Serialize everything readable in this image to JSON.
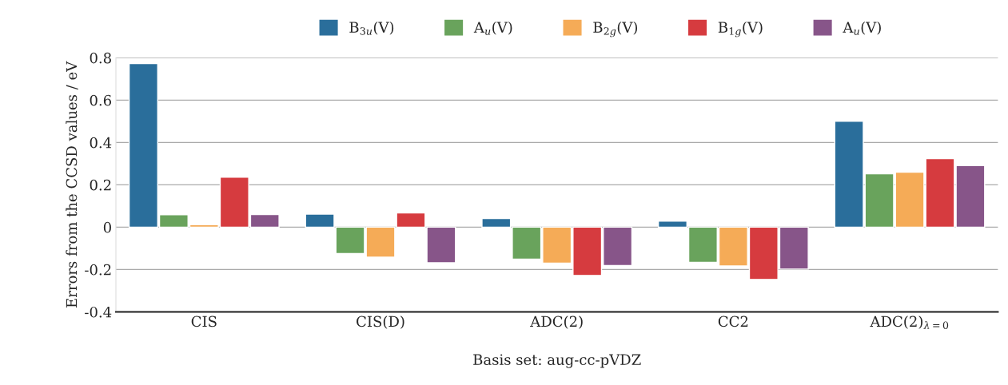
{
  "chart_data": {
    "type": "bar",
    "xlabel": "Basis set: aug-cc-pVDZ",
    "ylabel": "Errors from the CCSD values / eV",
    "categories": [
      "CIS",
      "CIS(D)",
      "ADC(2)",
      "CC2",
      "ADC(2)$_{λ=0}$"
    ],
    "series": [
      {
        "name": "B$_{3u}$(V)",
        "color": "#2a6e9b",
        "values": [
          0.773,
          0.062,
          0.041,
          0.029,
          0.5
        ]
      },
      {
        "name": "A$_{u}$(V)",
        "color": "#69a35c",
        "values": [
          0.059,
          -0.125,
          -0.151,
          -0.166,
          0.252
        ]
      },
      {
        "name": "B$_{2g}$(V)",
        "color": "#f5ab57",
        "values": [
          0.012,
          -0.142,
          -0.17,
          -0.183,
          0.26
        ]
      },
      {
        "name": "B$_{1g}$(V)",
        "color": "#d63b3f",
        "values": [
          0.236,
          0.067,
          -0.228,
          -0.247,
          0.324
        ]
      },
      {
        "name": "A$_{u}$(V)",
        "color": "#875589",
        "values": [
          0.06,
          -0.168,
          -0.181,
          -0.198,
          0.291
        ]
      }
    ],
    "ylim": [
      -0.4,
      0.8
    ],
    "yticks": [
      {
        "value": -0.4,
        "label": "-0.4"
      },
      {
        "value": -0.2,
        "label": "-0.2"
      },
      0,
      0.2,
      0.4,
      0.6,
      0.8
    ],
    "grid": "y",
    "legend": "top"
  }
}
